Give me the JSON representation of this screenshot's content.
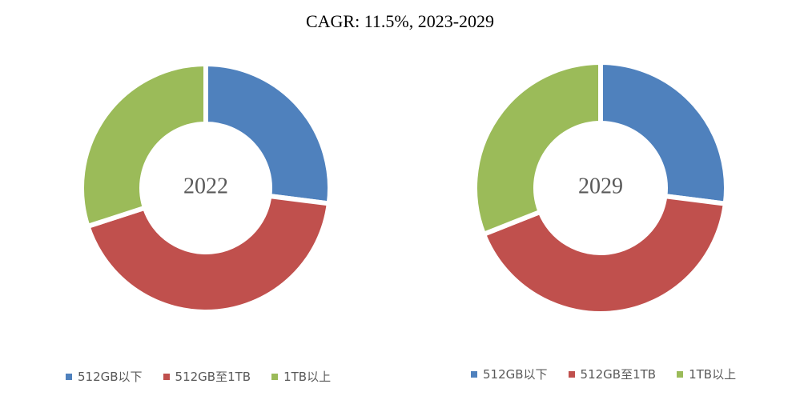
{
  "chart_data": [
    {
      "type": "pie",
      "title": "CAGR:  11.5%, 2023-2029",
      "center_label": "2022",
      "categories": [
        "512GB以下",
        "512GB至1TB",
        "1TB以上"
      ],
      "values": [
        27,
        43,
        30
      ],
      "colors": [
        "#4F81BD",
        "#C0504D",
        "#9BBB59"
      ],
      "legend_position": "bottom"
    },
    {
      "type": "pie",
      "center_label": "2029",
      "categories": [
        "512GB以下",
        "512GB至1TB",
        "1TB以上"
      ],
      "values": [
        27,
        42,
        31
      ],
      "colors": [
        "#4F81BD",
        "#C0504D",
        "#9BBB59"
      ],
      "legend_position": "bottom"
    }
  ]
}
